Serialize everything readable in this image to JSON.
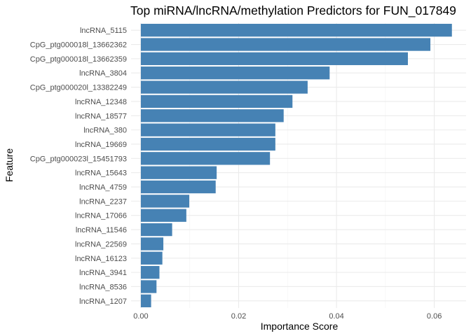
{
  "chart_data": {
    "type": "bar",
    "orientation": "horizontal",
    "title": "Top miRNA/lncRNA/methylation Predictors for FUN_017849",
    "xlabel": "Importance Score",
    "ylabel": "Feature",
    "xlim": [
      -0.002,
      0.0665
    ],
    "xticks": [
      "0.00",
      "0.02",
      "0.04",
      "0.06"
    ],
    "grid": true,
    "bar_color": "#4682B4",
    "categories": [
      "lncRNA_5115",
      "CpG_ptg000018l_13662362",
      "CpG_ptg000018l_13662359",
      "lncRNA_3804",
      "CpG_ptg000020l_13382249",
      "lncRNA_12348",
      "lncRNA_18577",
      "lncRNA_380",
      "lncRNA_19669",
      "CpG_ptg000023l_15451793",
      "lncRNA_15643",
      "lncRNA_4759",
      "lncRNA_2237",
      "lncRNA_17066",
      "lncRNA_11546",
      "lncRNA_22569",
      "lncRNA_16123",
      "lncRNA_3941",
      "lncRNA_8536",
      "lncRNA_1207"
    ],
    "values": [
      0.0636,
      0.0592,
      0.0546,
      0.0386,
      0.0341,
      0.031,
      0.0292,
      0.0275,
      0.0275,
      0.0264,
      0.0155,
      0.0153,
      0.0099,
      0.0093,
      0.0064,
      0.0046,
      0.0044,
      0.0038,
      0.0032,
      0.0021
    ]
  }
}
